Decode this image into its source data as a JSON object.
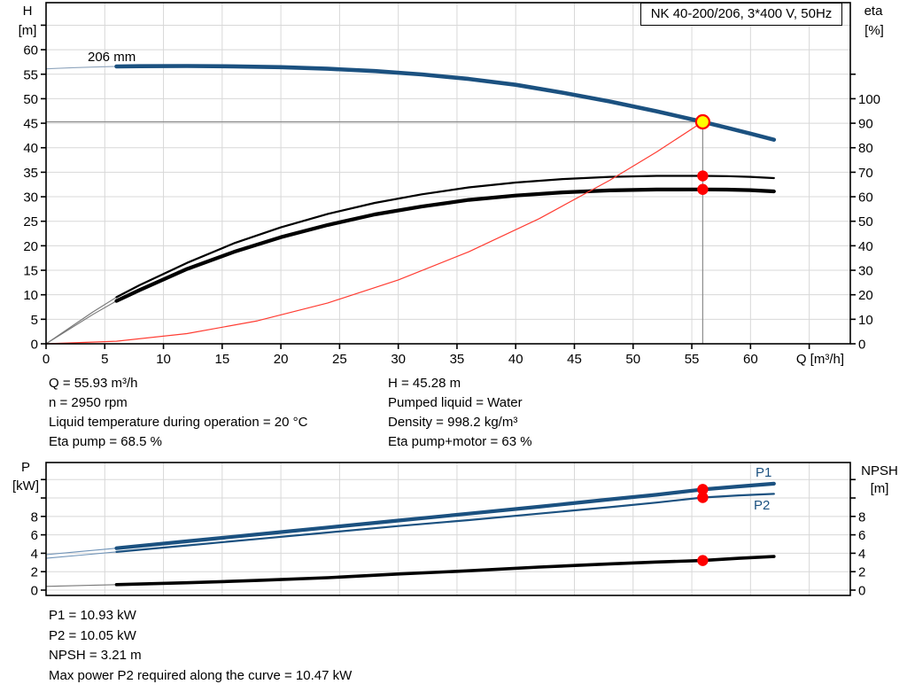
{
  "title_box": {
    "text": "NK 40-200/206, 3*400 V, 50Hz"
  },
  "chart_data": [
    {
      "type": "line",
      "title": "NK 40-200/206, 3*400 V, 50Hz",
      "x_axis": {
        "label": "Q [m³/h]",
        "range": [
          0,
          68.5
        ],
        "ticks": [
          0,
          5,
          10,
          15,
          20,
          25,
          30,
          35,
          40,
          45,
          50,
          55,
          60
        ],
        "unlabeled_ticks": [
          65
        ],
        "grid_step": 5
      },
      "y_left": {
        "label_lines": [
          "H",
          "[m]"
        ],
        "range": [
          0,
          69.6
        ],
        "ticks": [
          60,
          55,
          50,
          45,
          40,
          35,
          30,
          25,
          20,
          15,
          10,
          5,
          0
        ],
        "unlabeled_ticks": [
          65
        ],
        "grid_step": 5
      },
      "y_right": {
        "label_lines": [
          "eta",
          "[%]"
        ],
        "range": [
          0,
          139.2
        ],
        "ticks": [
          100,
          90,
          80,
          70,
          60,
          50,
          40,
          30,
          20,
          10,
          0
        ],
        "unlabeled_ticks": [
          110
        ]
      },
      "legend_position": "none",
      "grid": true,
      "series": [
        {
          "id": "eta-pump",
          "name": "Eta pump",
          "axis": "right",
          "color": "#000000",
          "width": 2.2,
          "lead_color": "#777777",
          "lead": [
            [
              0,
              0
            ],
            [
              2,
              6.5
            ],
            [
              4,
              13
            ],
            [
              6,
              19
            ]
          ],
          "points": [
            [
              6,
              19
            ],
            [
              8,
              24
            ],
            [
              12,
              33
            ],
            [
              16,
              41
            ],
            [
              20,
              47.5
            ],
            [
              24,
              53
            ],
            [
              28,
              57.5
            ],
            [
              32,
              61
            ],
            [
              36,
              63.8
            ],
            [
              40,
              65.8
            ],
            [
              44,
              67.2
            ],
            [
              48,
              68.1
            ],
            [
              52,
              68.5
            ],
            [
              55.93,
              68.5
            ],
            [
              58,
              68.4
            ],
            [
              60,
              68.1
            ],
            [
              62,
              67.6
            ]
          ]
        },
        {
          "id": "eta-pump-motor",
          "name": "Eta pump+motor",
          "axis": "right",
          "color": "#000000",
          "width": 4.2,
          "lead_color": "#777777",
          "lead": [
            [
              0,
              0
            ],
            [
              2,
              6
            ],
            [
              4,
              12
            ],
            [
              6,
              17.5
            ]
          ],
          "points": [
            [
              6,
              17.5
            ],
            [
              8,
              22
            ],
            [
              12,
              30.5
            ],
            [
              16,
              37.5
            ],
            [
              20,
              43.5
            ],
            [
              24,
              48.5
            ],
            [
              28,
              52.8
            ],
            [
              32,
              56
            ],
            [
              36,
              58.7
            ],
            [
              40,
              60.5
            ],
            [
              44,
              61.8
            ],
            [
              48,
              62.6
            ],
            [
              52,
              62.95
            ],
            [
              55.93,
              63
            ],
            [
              58,
              62.9
            ],
            [
              60,
              62.7
            ],
            [
              62,
              62.2
            ]
          ]
        },
        {
          "id": "system-curve",
          "name": "System curve",
          "axis": "left",
          "color": "#ff3c32",
          "width": 1.2,
          "points": [
            [
              0,
              0
            ],
            [
              6,
              0.52
            ],
            [
              12,
              2.08
            ],
            [
              18,
              4.69
            ],
            [
              24,
              8.34
            ],
            [
              30,
              13.03
            ],
            [
              36,
              18.76
            ],
            [
              42,
              25.53
            ],
            [
              48,
              33.35
            ],
            [
              52,
              39.14
            ],
            [
              55.93,
              45.28
            ]
          ]
        },
        {
          "id": "pump-206mm",
          "name": "206 mm",
          "axis": "left",
          "color": "#1b5180",
          "width": 4.6,
          "lead_color": "#8fa5bd",
          "lead": [
            [
              0,
              56.1
            ],
            [
              2,
              56.3
            ],
            [
              4,
              56.45
            ],
            [
              6,
              56.58
            ]
          ],
          "points": [
            [
              6,
              56.58
            ],
            [
              8,
              56.64
            ],
            [
              12,
              56.68
            ],
            [
              16,
              56.6
            ],
            [
              20,
              56.44
            ],
            [
              24,
              56.12
            ],
            [
              28,
              55.64
            ],
            [
              32,
              54.96
            ],
            [
              36,
              54.04
            ],
            [
              40,
              52.84
            ],
            [
              44,
              51.24
            ],
            [
              48,
              49.44
            ],
            [
              52,
              47.44
            ],
            [
              55.93,
              45.28
            ],
            [
              58,
              44.08
            ],
            [
              60,
              42.88
            ],
            [
              62,
              41.64
            ]
          ]
        }
      ],
      "crosshair": {
        "q": 55.93,
        "value": 45.28,
        "color": "#8c8c8c"
      },
      "markers": [
        {
          "id": "eta-pump-dot",
          "style": "dot",
          "axis": "right",
          "q": 55.93,
          "value": 68.5,
          "fill": "#ff0000"
        },
        {
          "id": "eta-pump-motor-dot",
          "style": "dot",
          "axis": "right",
          "q": 55.93,
          "value": 63,
          "fill": "#ff0000"
        },
        {
          "id": "duty-point",
          "style": "duty",
          "axis": "left",
          "q": 55.93,
          "value": 45.28,
          "fill": "#ffff00",
          "stroke": "#ff0000"
        }
      ]
    },
    {
      "type": "line",
      "x_axis": {
        "range": [
          0,
          68.5
        ],
        "grid_step": 5
      },
      "y_left": {
        "label_lines": [
          "P",
          "[kW]"
        ],
        "range": [
          0,
          13.85
        ],
        "ticks": [
          8,
          6,
          4,
          2,
          0
        ],
        "unlabeled_ticks": [
          10,
          12
        ],
        "grid_step": 2
      },
      "y_right": {
        "label_lines": [
          "NPSH",
          "[m]"
        ],
        "range": [
          0,
          13.85
        ],
        "ticks": [
          8,
          6,
          4,
          2,
          0
        ],
        "unlabeled_ticks": [
          10,
          12
        ]
      },
      "grid": true,
      "series": [
        {
          "id": "p1",
          "name": "P1",
          "axis": "left",
          "color": "#1b5180",
          "width": 4.2,
          "lead_color": "#6f93b8",
          "lead": [
            [
              0,
              3.85
            ],
            [
              3,
              4.2
            ],
            [
              6,
              4.55
            ]
          ],
          "points": [
            [
              6,
              4.55
            ],
            [
              12,
              5.3
            ],
            [
              18,
              6.05
            ],
            [
              24,
              6.8
            ],
            [
              30,
              7.55
            ],
            [
              36,
              8.3
            ],
            [
              42,
              9.05
            ],
            [
              48,
              9.85
            ],
            [
              52,
              10.35
            ],
            [
              55.93,
              10.93
            ],
            [
              59,
              11.25
            ],
            [
              62,
              11.55
            ]
          ]
        },
        {
          "id": "p2",
          "name": "P2",
          "axis": "left",
          "color": "#1b5180",
          "width": 2.2,
          "lead_color": "#6f93b8",
          "lead": [
            [
              0,
              3.45
            ],
            [
              3,
              3.8
            ],
            [
              6,
              4.15
            ]
          ],
          "points": [
            [
              6,
              4.15
            ],
            [
              12,
              4.85
            ],
            [
              18,
              5.55
            ],
            [
              24,
              6.25
            ],
            [
              30,
              6.95
            ],
            [
              36,
              7.6
            ],
            [
              42,
              8.3
            ],
            [
              48,
              9.0
            ],
            [
              52,
              9.5
            ],
            [
              55.93,
              10.05
            ],
            [
              59,
              10.28
            ],
            [
              62,
              10.45
            ]
          ]
        },
        {
          "id": "npsh",
          "name": "NPSH",
          "axis": "right",
          "color": "#000000",
          "width": 3.6,
          "lead_color": "#777777",
          "lead": [
            [
              0,
              0.4
            ],
            [
              3,
              0.5
            ],
            [
              6,
              0.6
            ]
          ],
          "points": [
            [
              6,
              0.6
            ],
            [
              12,
              0.8
            ],
            [
              18,
              1.05
            ],
            [
              24,
              1.35
            ],
            [
              30,
              1.75
            ],
            [
              36,
              2.1
            ],
            [
              42,
              2.5
            ],
            [
              48,
              2.85
            ],
            [
              52,
              3.05
            ],
            [
              55.93,
              3.21
            ],
            [
              59,
              3.45
            ],
            [
              62,
              3.65
            ]
          ]
        }
      ],
      "markers": [
        {
          "id": "p1-dot",
          "style": "dot",
          "axis": "left",
          "q": 55.93,
          "value": 10.93,
          "fill": "#ff0000"
        },
        {
          "id": "p2-dot",
          "style": "dot",
          "axis": "left",
          "q": 55.93,
          "value": 10.05,
          "fill": "#ff0000"
        },
        {
          "id": "npsh-dot",
          "style": "dot",
          "axis": "right",
          "q": 55.93,
          "value": 3.21,
          "fill": "#ff0000"
        }
      ]
    }
  ],
  "info_top": {
    "col1": [
      "Q = 55.93 m³/h",
      "n = 2950 rpm",
      "Liquid temperature during operation = 20 °C",
      "Eta pump = 68.5 %"
    ],
    "col2": [
      "H = 45.28 m",
      "Pumped liquid = Water",
      "Density = 998.2 kg/m³",
      "Eta pump+motor = 63 %"
    ]
  },
  "info_bottom": [
    "P1 = 10.93 kW",
    "P2 = 10.05 kW",
    "NPSH = 3.21 m",
    "Max power P2 required along the curve = 10.47 kW"
  ],
  "colors": {
    "curve_blue": "#1b5180",
    "system_red": "#ff3c32",
    "marker_red": "#ff0000",
    "duty_yellow": "#ffff00",
    "grid": "#d8d8d8",
    "crosshair": "#8c8c8c"
  }
}
